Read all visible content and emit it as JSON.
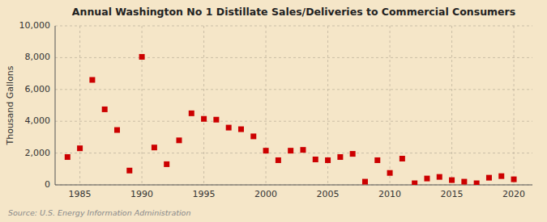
{
  "chart_data": {
    "type": "scatter",
    "title": "Annual Washington No 1 Distillate Sales/Deliveries to Commercial Consumers",
    "ylabel": "Thousand Gallons",
    "annotation": "Source: U.S. Energy Information Administration",
    "x": [
      1984,
      1985,
      1986,
      1987,
      1988,
      1989,
      1990,
      1991,
      1992,
      1993,
      1994,
      1995,
      1996,
      1997,
      1998,
      1999,
      2000,
      2001,
      2002,
      2003,
      2004,
      2005,
      2006,
      2007,
      2008,
      2009,
      2010,
      2011,
      2012,
      2013,
      2014,
      2015,
      2016,
      2017,
      2018,
      2019,
      2020
    ],
    "values": [
      1750,
      2300,
      6600,
      4750,
      3450,
      900,
      8050,
      2350,
      1300,
      2800,
      4500,
      4150,
      4100,
      3600,
      3500,
      3050,
      2150,
      1550,
      2150,
      2200,
      1600,
      1550,
      1750,
      1950,
      200,
      1550,
      750,
      1650,
      100,
      400,
      500,
      300,
      200,
      100,
      450,
      550,
      350
    ],
    "color": "#cc0000",
    "marker": "square",
    "xlim": [
      1983,
      2021.5
    ],
    "ylim": [
      0,
      10000
    ],
    "xticks": [
      1985,
      1990,
      1995,
      2000,
      2005,
      2010,
      2015,
      2020
    ],
    "yticks": [
      0,
      {
        "value": 2000,
        "label": "2,000"
      },
      {
        "value": 4000,
        "label": "4,000"
      },
      {
        "value": 6000,
        "label": "6,000"
      },
      {
        "value": 8000,
        "label": "8,000"
      },
      {
        "value": 10000,
        "label": "10,000"
      }
    ],
    "grid": true
  }
}
